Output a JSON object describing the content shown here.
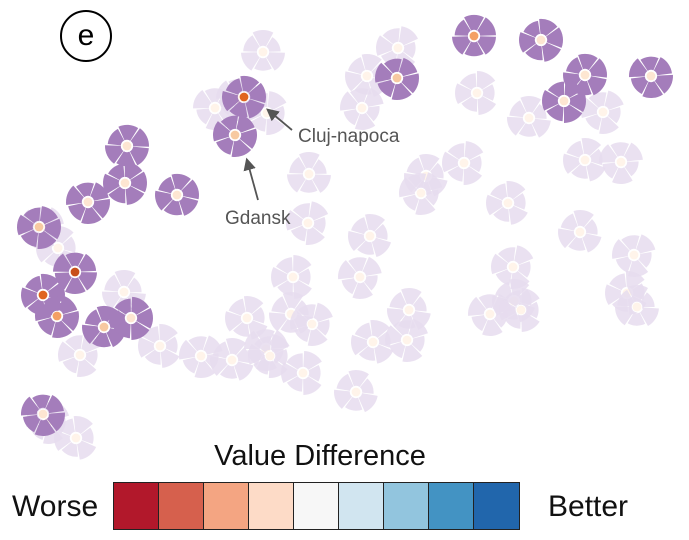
{
  "panel_label": "e",
  "legend": {
    "title": "Value Difference",
    "left_label": "Worse",
    "right_label": "Better",
    "colors": [
      "#b2182b",
      "#d6604d",
      "#f4a582",
      "#fddbc7",
      "#f7f7f7",
      "#d1e5f0",
      "#92c5de",
      "#4393c3",
      "#2166ac"
    ]
  },
  "annotations": [
    {
      "label": "Cluj-napoca"
    },
    {
      "label": "Gdansk"
    }
  ],
  "colors": {
    "highlight_glyph": "#a47dbb",
    "faded_glyph": "#e6dcee",
    "center_neutral": "#fde6d2",
    "center_light": "#f7c9a1",
    "center_medium": "#f4a064",
    "center_strong": "#e0641f",
    "center_dark": "#c8501a",
    "annotation_text": "#555555",
    "annotation_arrow": "#555555"
  }
}
